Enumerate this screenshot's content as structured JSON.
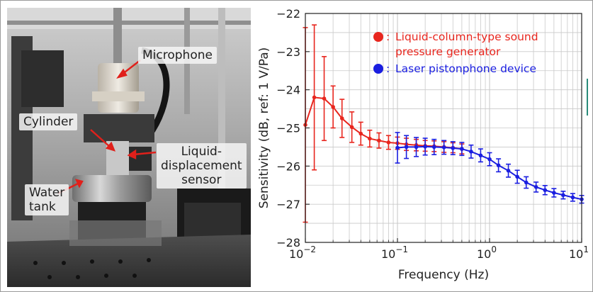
{
  "figure": {
    "photo_labels": {
      "microphone": "Microphone",
      "cylinder": "Cylinder",
      "liquid_displacement_line1": "Liquid-",
      "liquid_displacement_line2": "displacement",
      "liquid_displacement_line3": "sensor",
      "water_tank_line1": "Water",
      "water_tank_line2": "tank"
    },
    "colors": {
      "annotation_arrow": "#e0201b"
    }
  },
  "chart_data": {
    "type": "line",
    "title": "",
    "xlabel": "Frequency (Hz)",
    "ylabel": "Sensitivity (dB, ref: 1 V/Pa)",
    "xscale": "log",
    "xlim": [
      0.01,
      10
    ],
    "ylim": [
      -28,
      -22
    ],
    "x_ticks": [
      0.01,
      0.1,
      1,
      10
    ],
    "x_tick_labels": [
      [
        "10",
        "−2"
      ],
      [
        "10",
        "−1"
      ],
      [
        "10",
        "0"
      ],
      [
        "10",
        "1"
      ]
    ],
    "y_ticks": [
      -22,
      -23,
      -24,
      -25,
      -26,
      -27,
      -28
    ],
    "y_tick_labels": [
      "−22",
      "−23",
      "−24",
      "−25",
      "−26",
      "−27",
      "−28"
    ],
    "grid": true,
    "legend_position": "top-right",
    "legend_marker": "●",
    "legend_separator": ":",
    "series": [
      {
        "name": "Liquid-column-type sound pressure generator",
        "legend_lines": [
          "Liquid-column-type sound",
          "pressure generator"
        ],
        "color": "#e8261e",
        "points": [
          {
            "x": 0.01,
            "y": -24.92,
            "err": 2.55
          },
          {
            "x": 0.0125,
            "y": -24.2,
            "err": 1.9
          },
          {
            "x": 0.016,
            "y": -24.23,
            "err": 1.1
          },
          {
            "x": 0.02,
            "y": -24.45,
            "err": 0.55
          },
          {
            "x": 0.025,
            "y": -24.75,
            "err": 0.5
          },
          {
            "x": 0.032,
            "y": -24.98,
            "err": 0.4
          },
          {
            "x": 0.04,
            "y": -25.15,
            "err": 0.3
          },
          {
            "x": 0.05,
            "y": -25.28,
            "err": 0.22
          },
          {
            "x": 0.063,
            "y": -25.33,
            "err": 0.2
          },
          {
            "x": 0.08,
            "y": -25.38,
            "err": 0.18
          },
          {
            "x": 0.1,
            "y": -25.4,
            "err": 0.16
          },
          {
            "x": 0.125,
            "y": -25.43,
            "err": 0.16
          },
          {
            "x": 0.16,
            "y": -25.45,
            "err": 0.15
          },
          {
            "x": 0.2,
            "y": -25.47,
            "err": 0.14
          },
          {
            "x": 0.25,
            "y": -25.48,
            "err": 0.14
          },
          {
            "x": 0.32,
            "y": -25.5,
            "err": 0.14
          },
          {
            "x": 0.4,
            "y": -25.52,
            "err": 0.13
          },
          {
            "x": 0.5,
            "y": -25.55,
            "err": 0.13
          }
        ]
      },
      {
        "name": "Laser pistonphone device",
        "legend_lines": [
          "Laser pistonphone device"
        ],
        "color": "#1a1ee0",
        "points": [
          {
            "x": 0.1,
            "y": -25.52,
            "err": 0.4
          },
          {
            "x": 0.125,
            "y": -25.5,
            "err": 0.3
          },
          {
            "x": 0.16,
            "y": -25.5,
            "err": 0.25
          },
          {
            "x": 0.2,
            "y": -25.49,
            "err": 0.22
          },
          {
            "x": 0.25,
            "y": -25.5,
            "err": 0.2
          },
          {
            "x": 0.32,
            "y": -25.51,
            "err": 0.18
          },
          {
            "x": 0.4,
            "y": -25.53,
            "err": 0.17
          },
          {
            "x": 0.5,
            "y": -25.55,
            "err": 0.17
          },
          {
            "x": 0.63,
            "y": -25.62,
            "err": 0.17
          },
          {
            "x": 0.8,
            "y": -25.72,
            "err": 0.17
          },
          {
            "x": 1.0,
            "y": -25.82,
            "err": 0.17
          },
          {
            "x": 1.25,
            "y": -25.98,
            "err": 0.17
          },
          {
            "x": 1.6,
            "y": -26.12,
            "err": 0.17
          },
          {
            "x": 2.0,
            "y": -26.28,
            "err": 0.17
          },
          {
            "x": 2.5,
            "y": -26.43,
            "err": 0.15
          },
          {
            "x": 3.2,
            "y": -26.55,
            "err": 0.13
          },
          {
            "x": 4.0,
            "y": -26.63,
            "err": 0.12
          },
          {
            "x": 5.0,
            "y": -26.7,
            "err": 0.11
          },
          {
            "x": 6.3,
            "y": -26.76,
            "err": 0.1
          },
          {
            "x": 8.0,
            "y": -26.82,
            "err": 0.1
          },
          {
            "x": 10.0,
            "y": -26.87,
            "err": 0.1
          }
        ]
      }
    ]
  }
}
